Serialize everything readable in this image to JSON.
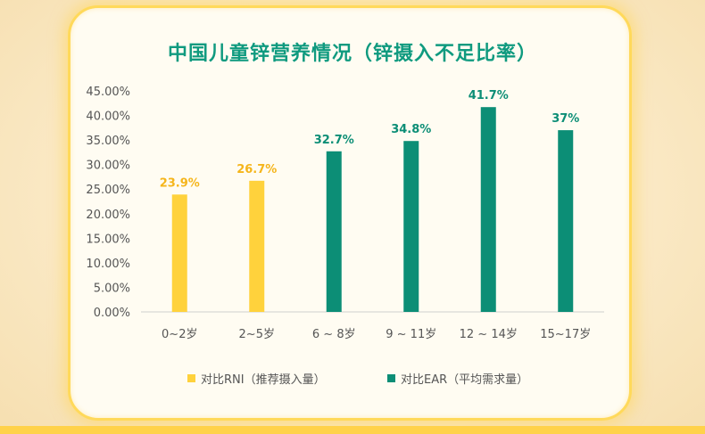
{
  "chart_data": {
    "type": "bar",
    "title": "中国儿童锌营养情况（锌摄入不足比率）",
    "categories": [
      "0~2岁",
      "2~5岁",
      "6 ~ 8岁",
      "9 ~ 11岁",
      "12 ~ 14岁",
      "15~17岁"
    ],
    "values": [
      23.9,
      26.7,
      32.7,
      34.8,
      41.7,
      37
    ],
    "data_labels": [
      "23.9%",
      "26.7%",
      "32.7%",
      "34.8%",
      "41.7%",
      "37%"
    ],
    "bar_series": [
      0,
      0,
      1,
      1,
      1,
      1
    ],
    "series": [
      {
        "name": "对比RNI（推荐摄入量）",
        "color": "#ffd23c"
      },
      {
        "name": "对比EAR（平均需求量）",
        "color": "#0c8e76"
      }
    ],
    "label_colors": [
      "#f5b51b",
      "#0c8e76"
    ],
    "yticks": [
      "0.00%",
      "5.00%",
      "10.00%",
      "15.00%",
      "20.00%",
      "25.00%",
      "30.00%",
      "35.00%",
      "40.00%",
      "45.00%"
    ],
    "ylim": [
      0,
      45
    ],
    "grid": false,
    "legend_position": "bottom"
  }
}
